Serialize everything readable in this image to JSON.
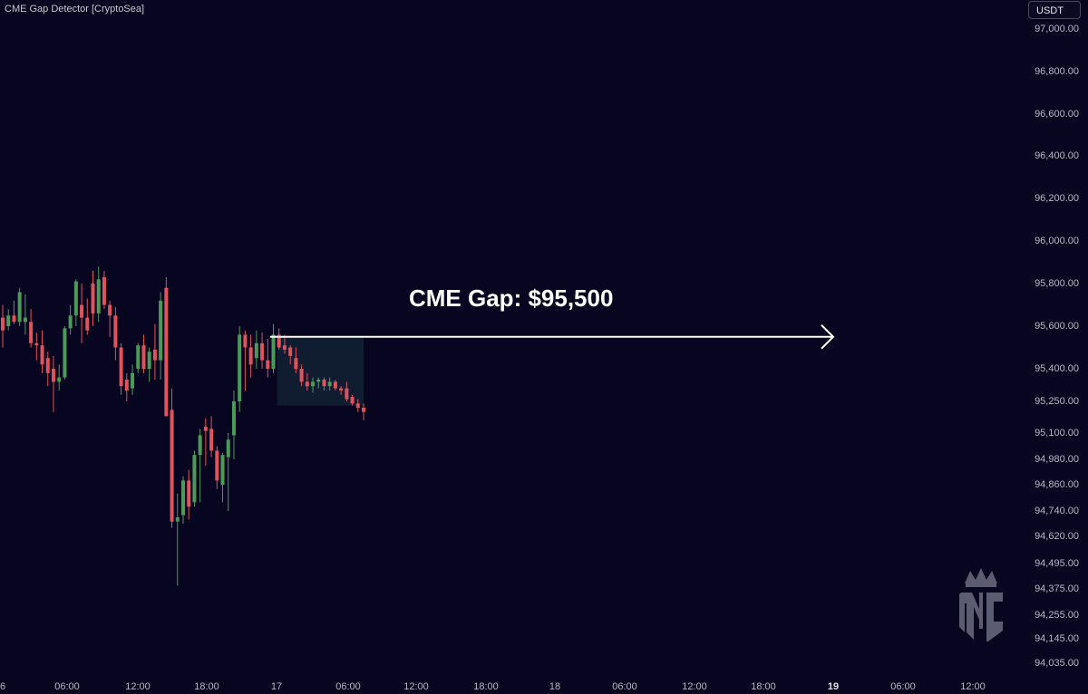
{
  "indicator": {
    "label": "CME Gap Detector [CryptoSea]"
  },
  "currency": {
    "label": "USDT"
  },
  "colors": {
    "background": "#07051f",
    "up": "#4c9a5a",
    "down": "#e0525c",
    "arrow": "#ffffff",
    "gap_fill": "#1c3a44"
  },
  "chart_data": {
    "type": "candlestick",
    "title": "",
    "y_tick_labels": [
      "97,000.00",
      "96,800.00",
      "96,600.00",
      "96,400.00",
      "96,200.00",
      "96,000.00",
      "95,800.00",
      "95,600.00",
      "95,400.00",
      "95,250.00",
      "95,100.00",
      "94,980.00",
      "94,860.00",
      "94,740.00",
      "94,620.00",
      "94,495.00",
      "94,375.00",
      "94,255.00",
      "94,145.00",
      "94,035.00"
    ],
    "x_tick_labels": [
      "6",
      "06:00",
      "12:00",
      "18:00",
      "17",
      "06:00",
      "12:00",
      "18:00",
      "18",
      "06:00",
      "12:00",
      "18:00",
      "19",
      "06:00",
      "12:00"
    ],
    "bold_x_ticks": [
      "19"
    ],
    "annotation": {
      "text": "CME Gap: $95,500",
      "price": 95550
    },
    "candles": [
      [
        95640,
        95700,
        95500,
        95580
      ],
      [
        95600,
        95680,
        95580,
        95650
      ],
      [
        95650,
        95720,
        95610,
        95620
      ],
      [
        95620,
        95780,
        95600,
        95760
      ],
      [
        95620,
        95750,
        95560,
        95640
      ],
      [
        95620,
        95680,
        95500,
        95520
      ],
      [
        95520,
        95570,
        95440,
        95510
      ],
      [
        95510,
        95580,
        95380,
        95420
      ],
      [
        95450,
        95480,
        95320,
        95380
      ],
      [
        95400,
        95460,
        95200,
        95340
      ],
      [
        95340,
        95420,
        95300,
        95360
      ],
      [
        95360,
        95600,
        95350,
        95590
      ],
      [
        95590,
        95700,
        95560,
        95650
      ],
      [
        95650,
        95820,
        95600,
        95810
      ],
      [
        95700,
        95800,
        95520,
        95640
      ],
      [
        95640,
        95730,
        95560,
        95580
      ],
      [
        95800,
        95860,
        95600,
        95660
      ],
      [
        95660,
        95880,
        95620,
        95820
      ],
      [
        95830,
        95860,
        95680,
        95700
      ],
      [
        95700,
        95720,
        95550,
        95650
      ],
      [
        95650,
        95690,
        95440,
        95500
      ],
      [
        95500,
        95520,
        95280,
        95320
      ],
      [
        95350,
        95380,
        95250,
        95300
      ],
      [
        95310,
        95420,
        95280,
        95380
      ],
      [
        95400,
        95520,
        95380,
        95510
      ],
      [
        95510,
        95560,
        95380,
        95400
      ],
      [
        95400,
        95500,
        95340,
        95480
      ],
      [
        95490,
        95610,
        95350,
        95440
      ],
      [
        95440,
        95760,
        95350,
        95720
      ],
      [
        95780,
        95830,
        95180,
        95180
      ],
      [
        95210,
        95310,
        94660,
        94690
      ],
      [
        94690,
        94820,
        94390,
        94710
      ],
      [
        94720,
        94900,
        94680,
        94880
      ],
      [
        94880,
        94930,
        94700,
        94760
      ],
      [
        94780,
        95020,
        94760,
        95000
      ],
      [
        95000,
        95120,
        94780,
        95090
      ],
      [
        95130,
        95170,
        94950,
        95110
      ],
      [
        95120,
        95180,
        94990,
        95020
      ],
      [
        95020,
        95040,
        94840,
        94880
      ],
      [
        94860,
        95010,
        94780,
        95000
      ],
      [
        94990,
        95100,
        94740,
        95070
      ],
      [
        95090,
        95300,
        94980,
        95250
      ],
      [
        95250,
        95600,
        95200,
        95560
      ],
      [
        95560,
        95580,
        95300,
        95500
      ],
      [
        95500,
        95560,
        95360,
        95420
      ],
      [
        95450,
        95580,
        95400,
        95520
      ],
      [
        95520,
        95570,
        95400,
        95440
      ],
      [
        95440,
        95540,
        95360,
        95400
      ],
      [
        95400,
        95610,
        95380,
        95560
      ],
      [
        95560,
        95590,
        95490,
        95500
      ],
      [
        95510,
        95560,
        95470,
        95490
      ],
      [
        95500,
        95510,
        95420,
        95460
      ],
      [
        95450,
        95500,
        95380,
        95400
      ],
      [
        95400,
        95420,
        95320,
        95340
      ],
      [
        95340,
        95380,
        95300,
        95320
      ],
      [
        95320,
        95360,
        95290,
        95340
      ],
      [
        95340,
        95360,
        95310,
        95350
      ],
      [
        95350,
        95360,
        95300,
        95320
      ],
      [
        95320,
        95360,
        95300,
        95340
      ],
      [
        95340,
        95350,
        95300,
        95310
      ],
      [
        95310,
        95320,
        95280,
        95300
      ],
      [
        95310,
        95340,
        95250,
        95260
      ],
      [
        95270,
        95280,
        95230,
        95240
      ],
      [
        95240,
        95260,
        95200,
        95220
      ],
      [
        95220,
        95240,
        95160,
        95200
      ]
    ]
  }
}
